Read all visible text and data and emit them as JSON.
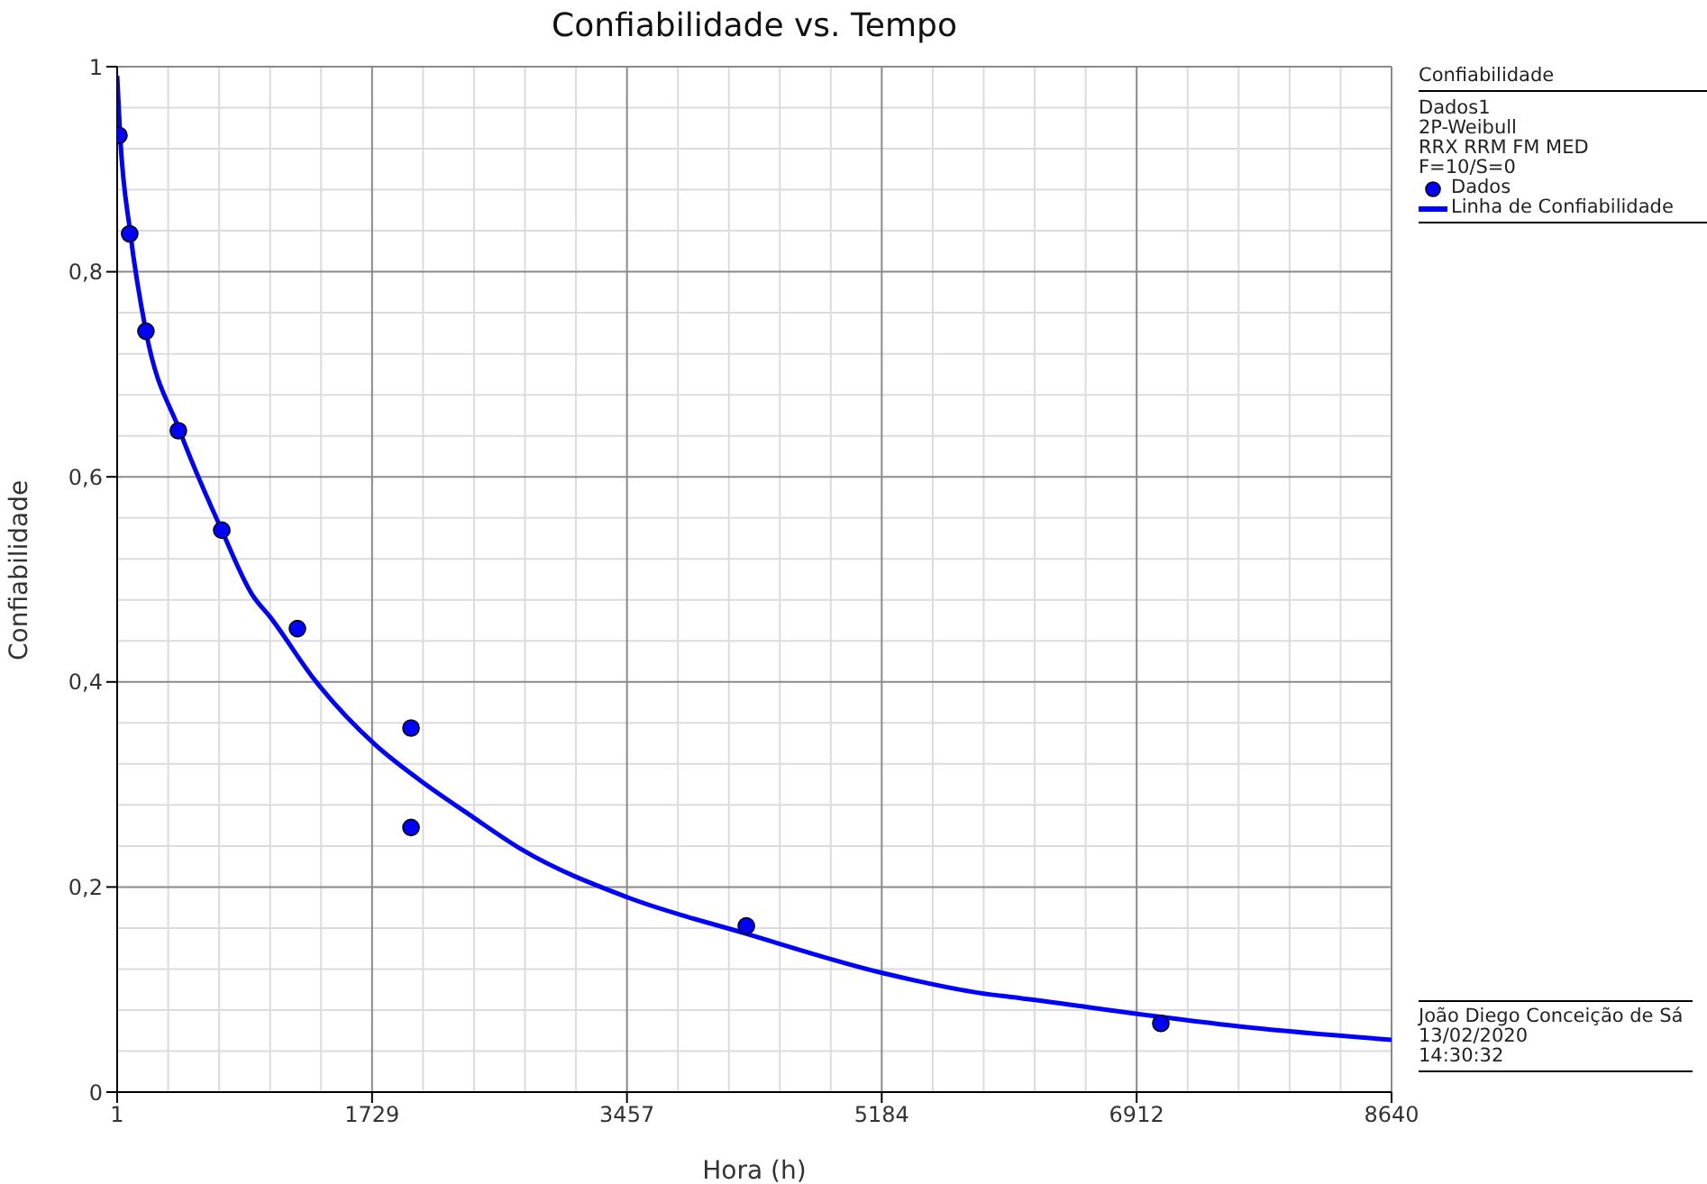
{
  "chart_data": {
    "type": "line",
    "title": "Confiabilidade vs. Tempo",
    "xlabel": "Hora (h)",
    "ylabel": "Confiabilidade",
    "legend_title": "Confiabilidade",
    "annotations": [
      "Dados1",
      "2P-Weibull",
      "RRX RRM FM MED",
      "F=10/S=0",
      "João Diego Conceição de Sá",
      "13/02/2020",
      "14:30:32"
    ],
    "series": [
      {
        "name": "Dados",
        "type": "scatter",
        "color": "#0000ff",
        "marker": "circle",
        "x": [
          13,
          86,
          196,
          416,
          710,
          1223,
          1993,
          1993,
          4266,
          7076
        ],
        "values": [
          0.933,
          0.837,
          0.742,
          0.645,
          0.548,
          0.452,
          0.355,
          0.258,
          0.162,
          0.067
        ]
      },
      {
        "name": "Linha de Confiabilidade",
        "color": "#0000ff",
        "marker": "none",
        "line_style": "solid",
        "x": [
          1,
          21,
          90,
          196,
          425,
          710,
          917,
          1040,
          1345,
          1748,
          2054,
          2384,
          2750,
          3459,
          4253,
          5194,
          5927,
          6049,
          6929,
          7675,
          8640
        ],
        "values": [
          0.991,
          0.933,
          0.838,
          0.742,
          0.645,
          0.548,
          0.485,
          0.463,
          0.401,
          0.339,
          0.304,
          0.271,
          0.236,
          0.19,
          0.155,
          0.116,
          0.095,
          0.093,
          0.076,
          0.063,
          0.051
        ]
      }
    ],
    "xlim": [
      1,
      8640
    ],
    "xticks": [
      1,
      1729,
      3457,
      5184,
      6912,
      8640
    ],
    "ylim": [
      0,
      1
    ],
    "yticks": [
      0,
      {
        "value": 0.2,
        "label": "0,2"
      },
      {
        "value": 0.4,
        "label": "0,4"
      },
      {
        "value": 0.6,
        "label": "0,6"
      },
      {
        "value": 0.8,
        "label": "0,8"
      },
      1
    ],
    "grid": true,
    "legend": "right"
  }
}
